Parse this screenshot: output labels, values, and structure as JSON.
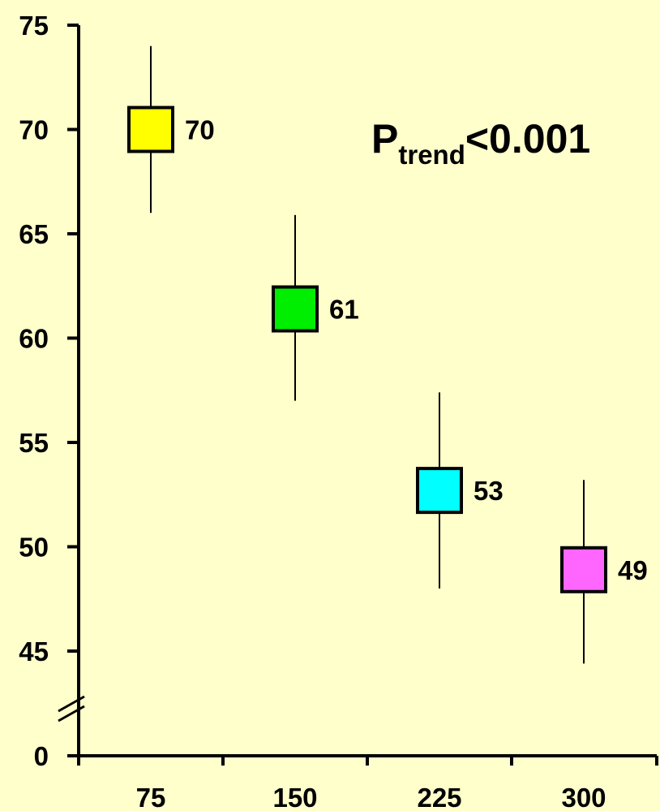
{
  "chart_data": {
    "type": "scatter",
    "title": "",
    "xlabel": "",
    "ylabel": "",
    "y_ticks": [
      0,
      45,
      50,
      55,
      60,
      65,
      70,
      75
    ],
    "y_axis_break": "between 0 and 45",
    "ylim": [
      45,
      75
    ],
    "x_categories": [
      "75",
      "150",
      "225",
      "300"
    ],
    "grid": false,
    "points": [
      {
        "x": "75",
        "y": 70,
        "y_low": 66,
        "y_high": 74,
        "label": "70",
        "color": "#ffff00"
      },
      {
        "x": "150",
        "y": 61.4,
        "y_low": 57,
        "y_high": 65.9,
        "label": "61",
        "color": "#00ee00"
      },
      {
        "x": "225",
        "y": 52.7,
        "y_low": 48,
        "y_high": 57.4,
        "label": "53",
        "color": "#00ffff"
      },
      {
        "x": "300",
        "y": 48.9,
        "y_low": 44.4,
        "y_high": 53.2,
        "label": "49",
        "color": "#ff66ff"
      }
    ],
    "annotation": {
      "main": "P",
      "subscript": "trend",
      "rest": "<0.001"
    }
  },
  "colors": {
    "background": "#ffffcc",
    "axis": "#000000",
    "marker_border": "#000000"
  }
}
